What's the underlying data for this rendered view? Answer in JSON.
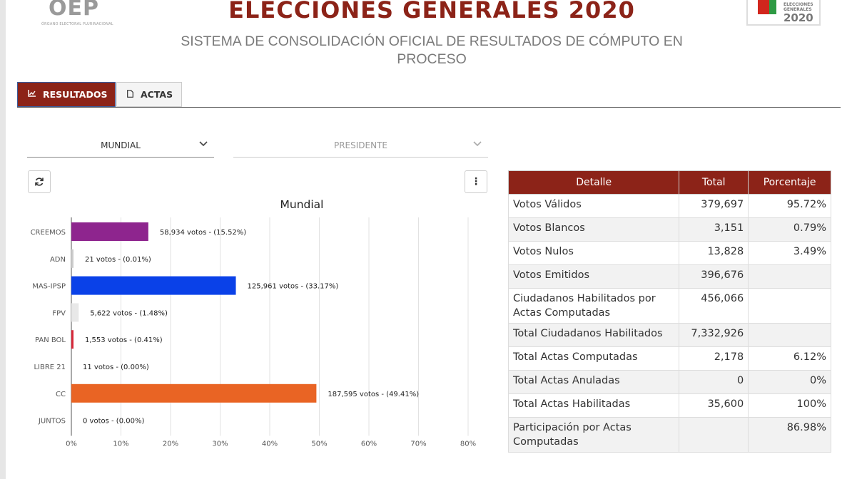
{
  "header": {
    "logo_left": "OEP",
    "logo_left_sub": "ÓRGANO ELECTORAL PLURINACIONAL",
    "title": "ELECCIONES GENERALES 2020",
    "subtitle": "SISTEMA DE CONSOLIDACIÓN OFICIAL DE RESULTADOS DE CÓMPUTO EN PROCESO",
    "logo_right_line1": "ELECCIONES",
    "logo_right_line2": "GENERALES",
    "logo_right_year": "2020"
  },
  "tabs": [
    {
      "label": "RESULTADOS",
      "icon": "chart-icon",
      "active": true
    },
    {
      "label": "ACTAS",
      "icon": "document-icon",
      "active": false
    }
  ],
  "filters": {
    "scope": "MUNDIAL",
    "office": "PRESIDENTE"
  },
  "colors": {
    "brand": "#8c2318",
    "creemos": "#8e258e",
    "mas": "#0a41e8",
    "fpv": "#e8e8e8",
    "panbol": "#d8283a",
    "cc": "#e96424"
  },
  "chart_data": {
    "type": "bar",
    "orientation": "horizontal",
    "title": "Mundial",
    "categories": [
      "CREEMOS",
      "ADN",
      "MAS-IPSP",
      "FPV",
      "PAN BOL",
      "LIBRE 21",
      "CC",
      "JUNTOS"
    ],
    "values": [
      15.52,
      0.01,
      33.17,
      1.48,
      0.41,
      0.0,
      49.41,
      0.0
    ],
    "data_labels": [
      "58,934 votos - (15.52%)",
      "21 votos - (0.01%)",
      "125,961 votos - (33.17%)",
      "5,622 votos - (1.48%)",
      "1,553 votos - (0.41%)",
      "11 votos - (0.00%)",
      "187,595 votos - (49.41%)",
      "0 votos - (0.00%)"
    ],
    "bar_colors": [
      "#8e258e",
      "#cccccc",
      "#0a41e8",
      "#e8e8e8",
      "#d8283a",
      "#cccccc",
      "#e96424",
      "#cccccc"
    ],
    "xlim": [
      0,
      80
    ],
    "x_ticks": [
      "0%",
      "10%",
      "20%",
      "30%",
      "40%",
      "50%",
      "60%",
      "70%",
      "80%"
    ],
    "grid": true
  },
  "details": {
    "headers": [
      "Detalle",
      "Total",
      "Porcentaje"
    ],
    "rows": [
      {
        "label": "Votos Válidos",
        "total": "379,697",
        "pct": "95.72%"
      },
      {
        "label": "Votos Blancos",
        "total": "3,151",
        "pct": "0.79%"
      },
      {
        "label": "Votos Nulos",
        "total": "13,828",
        "pct": "3.49%"
      },
      {
        "label": "Votos Emitidos",
        "total": "396,676",
        "pct": ""
      },
      {
        "label": "Ciudadanos Habilitados por Actas Computadas",
        "total": "456,066",
        "pct": ""
      },
      {
        "label": "Total Ciudadanos Habilitados",
        "total": "7,332,926",
        "pct": ""
      },
      {
        "label": "Total Actas Computadas",
        "total": "2,178",
        "pct": "6.12%"
      },
      {
        "label": "Total Actas Anuladas",
        "total": "0",
        "pct": "0%"
      },
      {
        "label": "Total Actas Habilitadas",
        "total": "35,600",
        "pct": "100%"
      },
      {
        "label": "Participación por Actas Computadas",
        "total": "",
        "pct": "86.98%"
      }
    ]
  }
}
